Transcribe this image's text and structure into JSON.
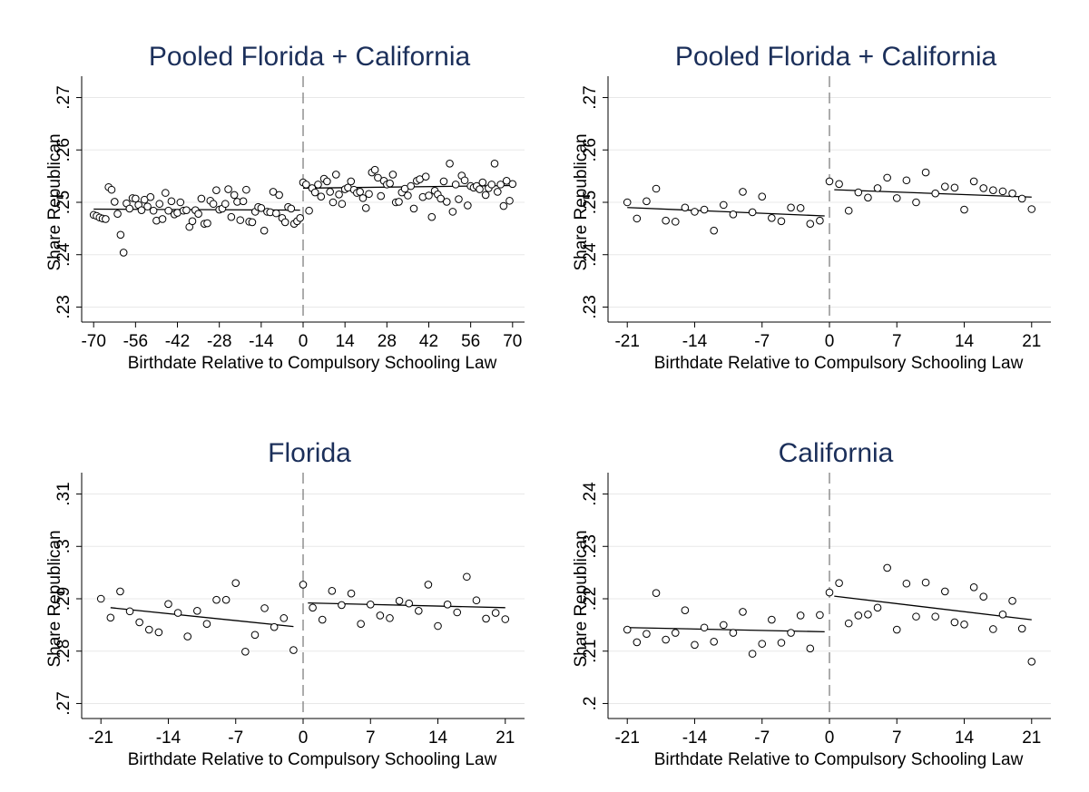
{
  "chart_data": [
    {
      "type": "scatter",
      "title": "Pooled Florida + California",
      "xlabel": "Birthdate Relative to Compulsory Schooling Law",
      "ylabel": "Share Republican",
      "xlim": [
        -74,
        74
      ],
      "ylim": [
        0.228,
        0.272
      ],
      "xticks": [
        -70,
        -56,
        -42,
        -28,
        -14,
        0,
        14,
        28,
        42,
        56,
        70
      ],
      "yticks": [
        0.23,
        0.24,
        0.25,
        0.26,
        0.27
      ],
      "ytick_labels": [
        ".23",
        ".24",
        ".25",
        ".26",
        ".27"
      ],
      "cutoff": 0,
      "fit": [
        {
          "x": [
            -70,
            -1
          ],
          "y": [
            0.2487,
            0.2485
          ]
        },
        {
          "x": [
            0,
            70
          ],
          "y": [
            0.2527,
            0.2532
          ]
        }
      ],
      "points": {
        "x": [
          -70,
          -69,
          -68,
          -67,
          -66,
          -65,
          -64,
          -63,
          -62,
          -61,
          -60,
          -59,
          -58,
          -57,
          -56,
          -55,
          -54,
          -53,
          -52,
          -51,
          -50,
          -49,
          -48,
          -47,
          -46,
          -45,
          -44,
          -43,
          -42,
          -41,
          -40,
          -39,
          -38,
          -37,
          -36,
          -35,
          -34,
          -33,
          -32,
          -31,
          -30,
          -29,
          -28,
          -27,
          -26,
          -25,
          -24,
          -23,
          -22,
          -21,
          -20,
          -19,
          -18,
          -17,
          -16,
          -15,
          -14,
          -13,
          -12,
          -11,
          -10,
          -9,
          -8,
          -7,
          -6,
          -5,
          -4,
          -3,
          -2,
          -1,
          0,
          1,
          2,
          3,
          4,
          5,
          6,
          7,
          8,
          9,
          10,
          11,
          12,
          13,
          14,
          15,
          16,
          17,
          18,
          19,
          20,
          21,
          22,
          23,
          24,
          25,
          26,
          27,
          28,
          29,
          30,
          31,
          32,
          33,
          34,
          35,
          36,
          37,
          38,
          39,
          40,
          41,
          42,
          43,
          44,
          45,
          46,
          47,
          48,
          49,
          50,
          51,
          52,
          53,
          54,
          55,
          56,
          57,
          58,
          59,
          60,
          61,
          62,
          63,
          64,
          65,
          66,
          67,
          68,
          69,
          70
        ],
        "y": [
          0.2476,
          0.2474,
          0.2471,
          0.2469,
          0.2468,
          0.2529,
          0.2524,
          0.2501,
          0.2478,
          0.2438,
          0.2404,
          0.2498,
          0.2488,
          0.2508,
          0.2507,
          0.2495,
          0.2485,
          0.2505,
          0.2492,
          0.251,
          0.2484,
          0.2465,
          0.2497,
          0.2468,
          0.2518,
          0.2484,
          0.2502,
          0.2477,
          0.248,
          0.25,
          0.2484,
          0.2485,
          0.2453,
          0.2464,
          0.2485,
          0.2478,
          0.2507,
          0.2459,
          0.246,
          0.2503,
          0.2497,
          0.2523,
          0.2486,
          0.2488,
          0.2497,
          0.2525,
          0.2472,
          0.2514,
          0.2501,
          0.2466,
          0.2502,
          0.2524,
          0.2463,
          0.2462,
          0.2482,
          0.2491,
          0.2489,
          0.2446,
          0.2482,
          0.2481,
          0.252,
          0.2479,
          0.2514,
          0.247,
          0.2462,
          0.2491,
          0.2488,
          0.2459,
          0.2464,
          0.247,
          0.2538,
          0.2534,
          0.2484,
          0.2527,
          0.2519,
          0.2534,
          0.2511,
          0.2545,
          0.254,
          0.252,
          0.25,
          0.2553,
          0.2515,
          0.2497,
          0.2525,
          0.2528,
          0.254,
          0.2524,
          0.2518,
          0.252,
          0.2508,
          0.2489,
          0.2516,
          0.2557,
          0.2562,
          0.2547,
          0.2512,
          0.2541,
          0.2534,
          0.2536,
          0.2553,
          0.25,
          0.2501,
          0.2519,
          0.2526,
          0.2513,
          0.2531,
          0.2488,
          0.2541,
          0.2544,
          0.251,
          0.2549,
          0.2513,
          0.2472,
          0.2522,
          0.2515,
          0.2507,
          0.254,
          0.2501,
          0.2574,
          0.2482,
          0.2534,
          0.2506,
          0.2551,
          0.2542,
          0.2494,
          0.2531,
          0.2528,
          0.2531,
          0.2525,
          0.2538,
          0.2514,
          0.2527,
          0.2534,
          0.2574,
          0.252,
          0.2534,
          0.2493,
          0.2541,
          0.2503,
          0.2535
        ]
      }
    },
    {
      "type": "scatter",
      "title": "Pooled Florida + California",
      "xlabel": "Birthdate Relative to Compulsory Schooling Law",
      "ylabel": "Share Republican",
      "xlim": [
        -23,
        23
      ],
      "ylim": [
        0.228,
        0.272
      ],
      "xticks": [
        -21,
        -14,
        -7,
        0,
        7,
        14,
        21
      ],
      "yticks": [
        0.23,
        0.24,
        0.25,
        0.26,
        0.27
      ],
      "ytick_labels": [
        ".23",
        ".24",
        ".25",
        ".26",
        ".27"
      ],
      "cutoff": 0,
      "fit": [
        {
          "x": [
            -21,
            -0.5
          ],
          "y": [
            0.249,
            0.2474
          ]
        },
        {
          "x": [
            0.5,
            21
          ],
          "y": [
            0.2524,
            0.251
          ]
        }
      ],
      "points": {
        "x": [
          -21,
          -20,
          -19,
          -18,
          -17,
          -16,
          -15,
          -14,
          -13,
          -12,
          -11,
          -10,
          -9,
          -8,
          -7,
          -6,
          -5,
          -4,
          -3,
          -2,
          -1,
          0,
          1,
          2,
          3,
          4,
          5,
          6,
          7,
          8,
          9,
          10,
          11,
          12,
          13,
          14,
          15,
          16,
          17,
          18,
          19,
          20,
          21
        ],
        "y": [
          0.25,
          0.2469,
          0.2502,
          0.2526,
          0.2465,
          0.2463,
          0.249,
          0.2482,
          0.2486,
          0.2446,
          0.2495,
          0.2477,
          0.252,
          0.2481,
          0.2511,
          0.247,
          0.2464,
          0.249,
          0.2489,
          0.2459,
          0.2465,
          0.254,
          0.2535,
          0.2484,
          0.2519,
          0.2509,
          0.2527,
          0.2547,
          0.2508,
          0.2542,
          0.25,
          0.2557,
          0.2517,
          0.253,
          0.2528,
          0.2486,
          0.254,
          0.2527,
          0.2523,
          0.2521,
          0.2517,
          0.2507,
          0.2487
        ]
      }
    },
    {
      "type": "scatter",
      "title": "Florida",
      "xlabel": "Birthdate Relative to Compulsory Schooling Law",
      "ylabel": "Share Republican",
      "xlim": [
        -23,
        23
      ],
      "ylim": [
        0.268,
        0.312
      ],
      "xticks": [
        -21,
        -14,
        -7,
        0,
        7,
        14,
        21
      ],
      "yticks": [
        0.27,
        0.28,
        0.29,
        0.3,
        0.31
      ],
      "ytick_labels": [
        ".27",
        ".28",
        ".29",
        ".3",
        ".31"
      ],
      "cutoff": 0,
      "fit": [
        {
          "x": [
            -20,
            -1
          ],
          "y": [
            0.2883,
            0.2847
          ]
        },
        {
          "x": [
            0.5,
            21
          ],
          "y": [
            0.2892,
            0.2883
          ]
        }
      ],
      "points": {
        "x": [
          -21,
          -20,
          -19,
          -18,
          -17,
          -16,
          -15,
          -14,
          -13,
          -12,
          -11,
          -10,
          -9,
          -8,
          -7,
          -6,
          -5,
          -4,
          -3,
          -2,
          -1,
          0,
          1,
          2,
          3,
          4,
          5,
          6,
          7,
          8,
          9,
          10,
          11,
          12,
          13,
          14,
          15,
          16,
          17,
          18,
          19,
          20,
          21
        ],
        "y": [
          0.29,
          0.2864,
          0.2914,
          0.2876,
          0.2855,
          0.2841,
          0.2836,
          0.289,
          0.2873,
          0.2828,
          0.2877,
          0.2852,
          0.2898,
          0.2898,
          0.293,
          0.2799,
          0.2831,
          0.2882,
          0.2846,
          0.2863,
          0.2802,
          0.2927,
          0.2883,
          0.286,
          0.2915,
          0.2888,
          0.291,
          0.2852,
          0.2889,
          0.2868,
          0.2863,
          0.2896,
          0.2891,
          0.2877,
          0.2927,
          0.2848,
          0.2889,
          0.2874,
          0.2942,
          0.2897,
          0.2862,
          0.2873,
          0.2861
        ]
      }
    },
    {
      "type": "scatter",
      "title": "California",
      "xlabel": "Birthdate Relative to Compulsory Schooling Law",
      "ylabel": "Share Republican",
      "xlim": [
        -23,
        23
      ],
      "ylim": [
        0.198,
        0.242
      ],
      "xticks": [
        -21,
        -14,
        -7,
        0,
        7,
        14,
        21
      ],
      "yticks": [
        0.2,
        0.21,
        0.22,
        0.23,
        0.24
      ],
      "ytick_labels": [
        ".2",
        ".21",
        ".22",
        ".23",
        ".24"
      ],
      "cutoff": 0,
      "fit": [
        {
          "x": [
            -21,
            -0.5
          ],
          "y": [
            0.2145,
            0.2137
          ]
        },
        {
          "x": [
            0.5,
            21
          ],
          "y": [
            0.2205,
            0.216
          ]
        }
      ],
      "points": {
        "x": [
          -21,
          -20,
          -19,
          -18,
          -17,
          -16,
          -15,
          -14,
          -13,
          -12,
          -11,
          -10,
          -9,
          -8,
          -7,
          -6,
          -5,
          -4,
          -3,
          -2,
          -1,
          0,
          1,
          2,
          3,
          4,
          5,
          6,
          7,
          8,
          9,
          10,
          11,
          12,
          13,
          14,
          15,
          16,
          17,
          18,
          19,
          20,
          21
        ],
        "y": [
          0.2141,
          0.2117,
          0.2133,
          0.2211,
          0.2122,
          0.2135,
          0.2178,
          0.2112,
          0.2145,
          0.2118,
          0.215,
          0.2135,
          0.2175,
          0.2095,
          0.2114,
          0.216,
          0.2116,
          0.2135,
          0.2168,
          0.2105,
          0.2169,
          0.2212,
          0.223,
          0.2153,
          0.2168,
          0.217,
          0.2183,
          0.2259,
          0.2141,
          0.2229,
          0.2166,
          0.2231,
          0.2166,
          0.2214,
          0.2155,
          0.2151,
          0.2222,
          0.2204,
          0.2142,
          0.217,
          0.2196,
          0.2143,
          0.208
        ]
      }
    }
  ]
}
